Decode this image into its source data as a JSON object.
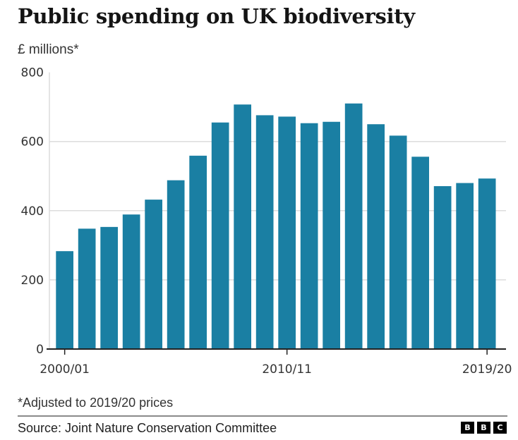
{
  "header": {
    "title": "Public spending on UK biodiversity",
    "subtitle": "£ millions*"
  },
  "footer": {
    "note": "*Adjusted to 2019/20 prices",
    "source": "Source: Joint Nature Conservation Committee",
    "logo_letters": [
      "B",
      "B",
      "C"
    ]
  },
  "colors": {
    "bar": "#1a7fa3",
    "gridline": "#dcdcdc",
    "axis": "#222222"
  },
  "chart_data": {
    "type": "bar",
    "title": "Public spending on UK biodiversity",
    "ylabel": "£ millions*",
    "xlabel": "",
    "ylim": [
      0,
      800
    ],
    "yticks": [
      0,
      200,
      400,
      600,
      800
    ],
    "grid": true,
    "categories": [
      "2000/01",
      "2001/02",
      "2002/03",
      "2003/04",
      "2004/05",
      "2005/06",
      "2006/07",
      "2007/08",
      "2008/09",
      "2009/10",
      "2010/11",
      "2011/12",
      "2012/13",
      "2013/14",
      "2014/15",
      "2015/16",
      "2016/17",
      "2017/18",
      "2018/19",
      "2019/20"
    ],
    "xtick_labels": [
      {
        "category": "2000/01",
        "label": "2000/01"
      },
      {
        "category": "2010/11",
        "label": "2010/11"
      },
      {
        "category": "2019/20",
        "label": "2019/20"
      }
    ],
    "values": [
      283,
      348,
      353,
      389,
      432,
      488,
      559,
      655,
      707,
      676,
      672,
      653,
      657,
      710,
      650,
      617,
      556,
      471,
      480,
      493
    ],
    "footnote": "*Adjusted to 2019/20 prices",
    "source": "Source: Joint Nature Conservation Committee"
  }
}
